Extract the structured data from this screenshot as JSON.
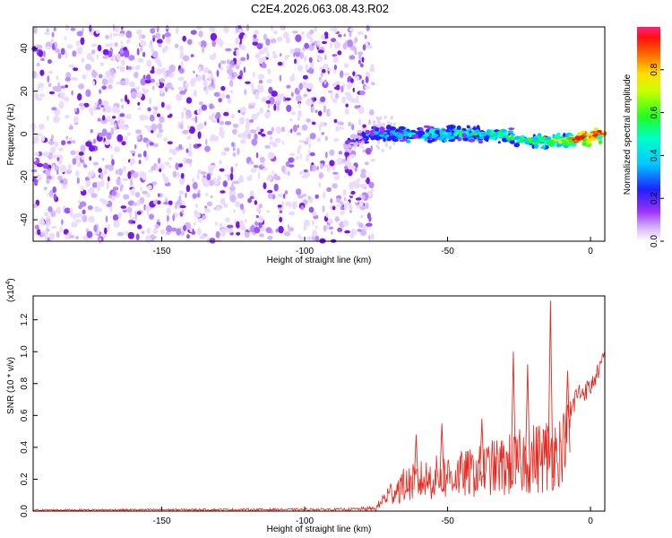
{
  "title": "C2E4.2026.063.08.43.R02",
  "colors": {
    "signal": "#e8281e",
    "axis": "#000000",
    "noise": "#7a18e8"
  },
  "chart_data": [
    {
      "type": "heatmap",
      "name": "spectrogram",
      "xlabel": "Height of straight line (km)",
      "ylabel": "Frequency (Hz)",
      "xlim": [
        -195,
        5
      ],
      "ylim": [
        -50,
        50
      ],
      "xticks": [
        -150,
        -100,
        -50,
        0
      ],
      "yticks": [
        -40,
        -20,
        0,
        20,
        40
      ],
      "noise_region_x": [
        -195,
        -76
      ],
      "signal_band": {
        "x": [
          -86,
          -80,
          -76,
          -70,
          -60,
          -50,
          -40,
          -30,
          -20,
          -10,
          -5,
          0,
          5
        ],
        "freq": [
          -5,
          -2,
          0,
          0,
          0,
          0,
          0,
          -1,
          -3,
          -3,
          -2,
          -1,
          0
        ],
        "intensity": [
          0.15,
          0.2,
          0.3,
          0.35,
          0.4,
          0.45,
          0.45,
          0.5,
          0.5,
          0.6,
          0.9,
          0.95,
          0.85
        ]
      },
      "colorbar": {
        "label": "Normalized spectral amplitude",
        "range": [
          0,
          1
        ],
        "ticks": [
          "0.0",
          "0.2",
          "0.4",
          "0.6",
          "0.8"
        ]
      }
    },
    {
      "type": "line",
      "name": "snr",
      "xlabel": "Height of straight line (km)",
      "ylabel": "SNR (10 * v/v)",
      "scale_label": "(x10",
      "scale_exp": "4",
      "scale_close": ")",
      "xlim": [
        -195,
        5
      ],
      "ylim": [
        0,
        1.35
      ],
      "xticks": [
        -150,
        -100,
        -50,
        0
      ],
      "yticks": [
        "0.0",
        "0.2",
        "0.4",
        "0.6",
        "0.8",
        "1.0",
        "1.2"
      ],
      "envelope": {
        "x": [
          -195,
          -85,
          -75,
          -72,
          -68,
          -65,
          -60,
          -55,
          -50,
          -45,
          -40,
          -35,
          -30,
          -25,
          -20,
          -15,
          -10,
          -5,
          0,
          5
        ],
        "base": [
          0.005,
          0.008,
          0.01,
          0.06,
          0.1,
          0.12,
          0.14,
          0.15,
          0.16,
          0.17,
          0.18,
          0.2,
          0.2,
          0.22,
          0.24,
          0.25,
          0.3,
          0.7,
          0.75,
          0.95
        ],
        "amp": [
          0.01,
          0.015,
          0.03,
          0.12,
          0.2,
          0.22,
          0.25,
          0.28,
          0.3,
          0.3,
          0.32,
          0.35,
          0.4,
          0.42,
          0.45,
          0.5,
          0.45,
          0.15,
          0.12,
          0.1
        ]
      },
      "peaks": [
        {
          "x": -61,
          "y": 0.48
        },
        {
          "x": -52,
          "y": 0.55
        },
        {
          "x": -38,
          "y": 0.58
        },
        {
          "x": -27,
          "y": 1.0
        },
        {
          "x": -22,
          "y": 0.92
        },
        {
          "x": -14,
          "y": 1.32
        },
        {
          "x": -8,
          "y": 0.88
        }
      ]
    }
  ]
}
